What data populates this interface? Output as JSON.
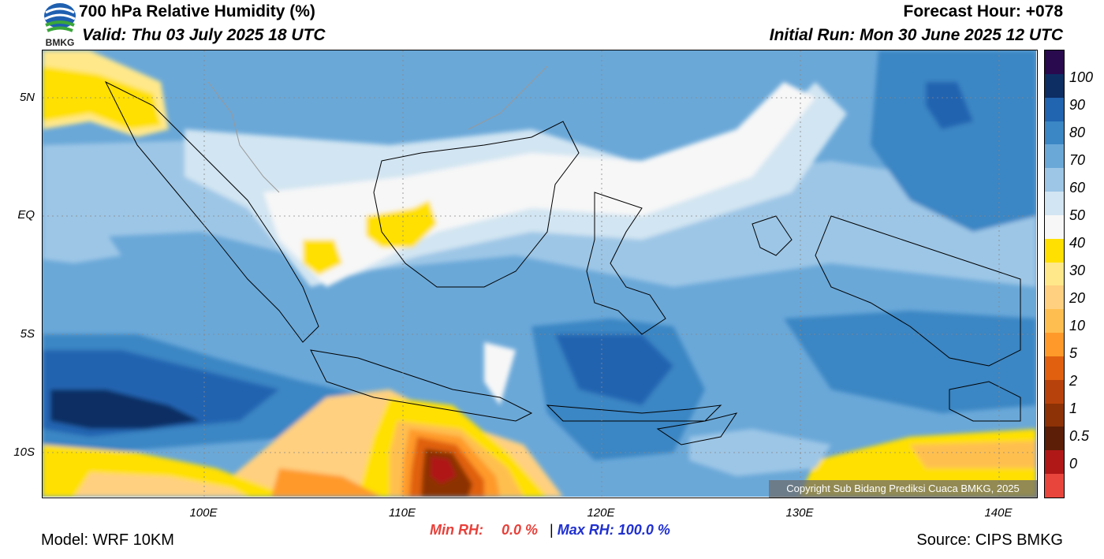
{
  "header": {
    "title": "700 hPa Relative Humidity (%)",
    "valid": "Valid: Thu 03 July 2025 18 UTC",
    "forecast_hour": "Forecast Hour: +078",
    "initial_run": "Initial Run: Mon 30 June 2025 12 UTC"
  },
  "logo": {
    "text": "BMKG",
    "icon": "bmkg-logo-icon"
  },
  "map": {
    "lat_labels": [
      "5N",
      "EQ",
      "5S",
      "10S"
    ],
    "lon_labels": [
      "100E",
      "110E",
      "120E",
      "130E",
      "140E"
    ],
    "copyright": "Copyright Sub Bidang Prediksi Cuaca BMKG, 2025"
  },
  "colorbar": {
    "labels": [
      "100",
      "90",
      "80",
      "70",
      "60",
      "50",
      "40",
      "30",
      "20",
      "10",
      "5",
      "2",
      "1",
      "0.5",
      "0"
    ],
    "colors": [
      "#2a0a4e",
      "#0d2e63",
      "#2164b0",
      "#3b86c4",
      "#6aa8d8",
      "#9dc6e6",
      "#d2e5f2",
      "#f7f7f7",
      "#ffe000",
      "#ffe88a",
      "#ffd080",
      "#ffbf50",
      "#ff9a2a",
      "#e06010",
      "#b8420b",
      "#8c3206",
      "#5c1e06",
      "#b01818",
      "#e8463c"
    ]
  },
  "stats": {
    "min_label": "Min RH:",
    "min_value": "0.0 %",
    "separator": "|",
    "max_label": "Max RH:",
    "max_value": "100.0 %"
  },
  "footer": {
    "model": "Model: WRF 10KM",
    "source": "Source: CIPS BMKG"
  }
}
